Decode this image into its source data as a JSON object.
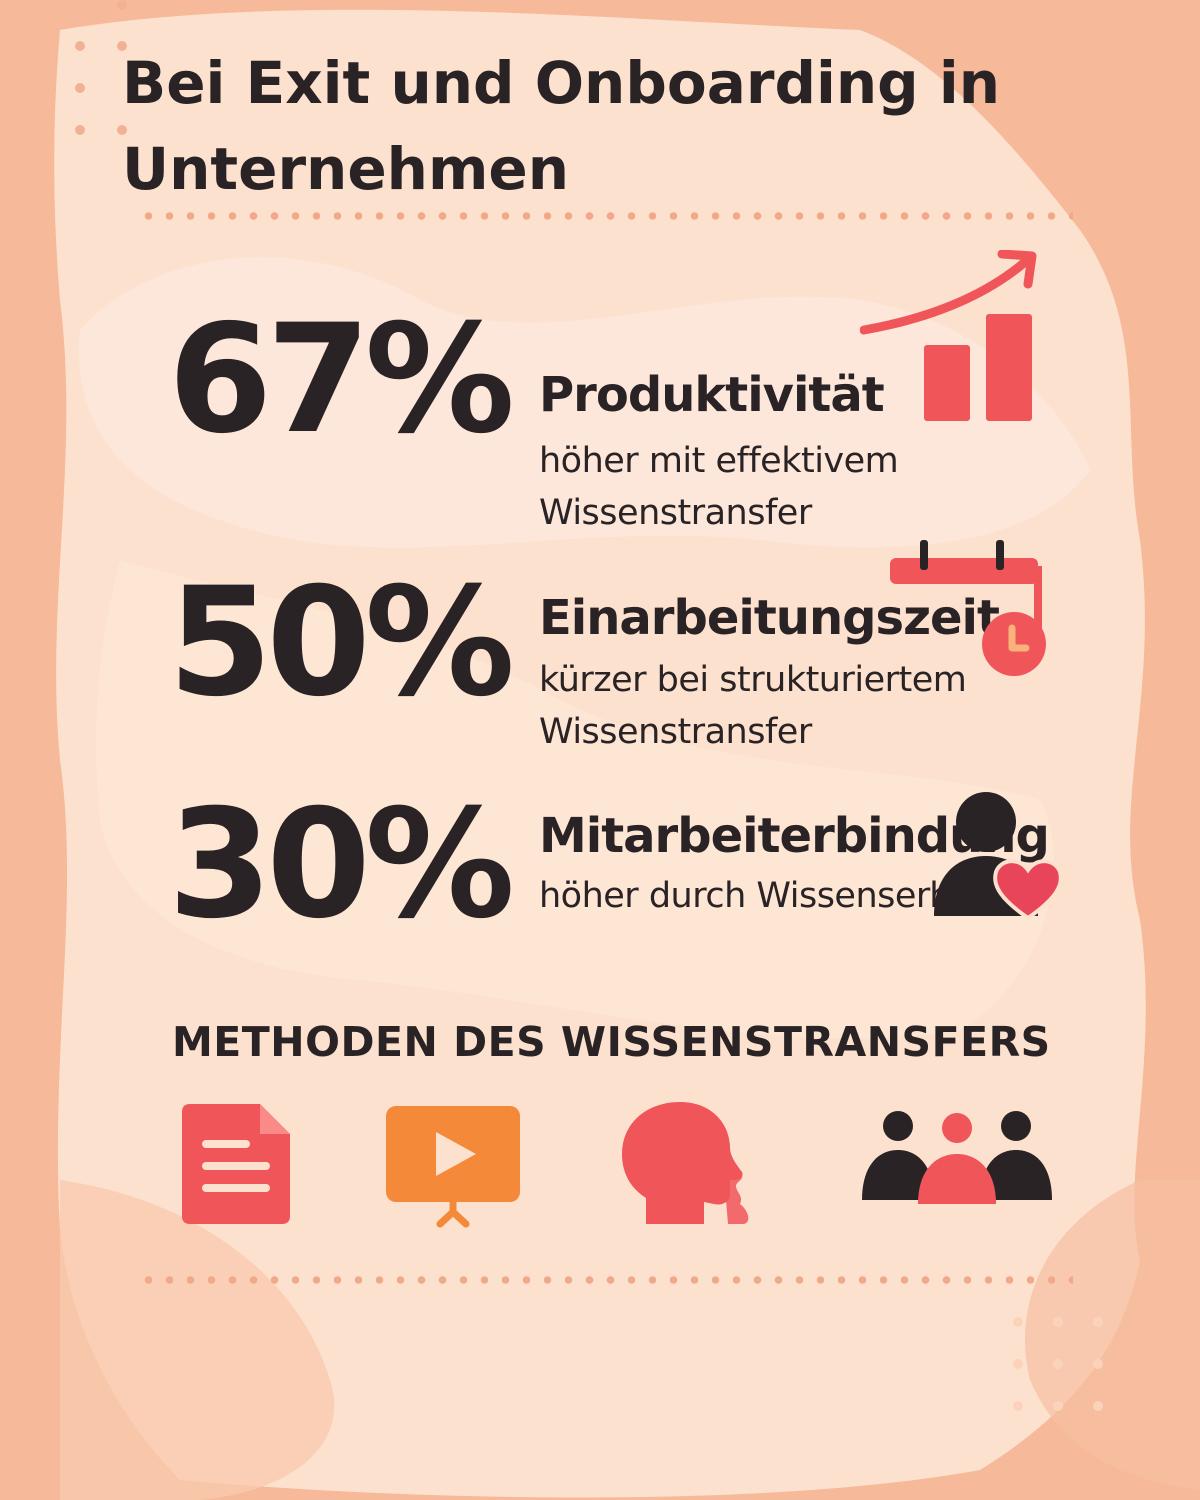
{
  "title": "Bei Exit und Onboarding in Unternehmen",
  "stats": [
    {
      "value": "67%",
      "heading": "Produktivität",
      "description": "höher mit effektivem Wissenstransfer",
      "icon": "bar-chart-growth-icon"
    },
    {
      "value": "50%",
      "heading": "Einarbeitungszeit",
      "description": "kürzer bei strukturiertem Wissenstransfer",
      "icon": "calendar-clock-icon"
    },
    {
      "value": "30%",
      "heading": "Mitarbeiterbindung",
      "description": "höher durch Wissenserhalt",
      "icon": "person-heart-icon"
    }
  ],
  "methods": {
    "title": "METHODEN DES WISSENSTRANSFERS",
    "icons": [
      "document-icon",
      "video-presentation-icon",
      "speaking-heads-icon",
      "group-icon"
    ]
  },
  "colors": {
    "background": "#f6b99a",
    "panel": "#fde1cf",
    "text": "#2a2325",
    "accent_red": "#f0555a",
    "accent_orange": "#f5893a",
    "dots": "#f2a98a"
  }
}
